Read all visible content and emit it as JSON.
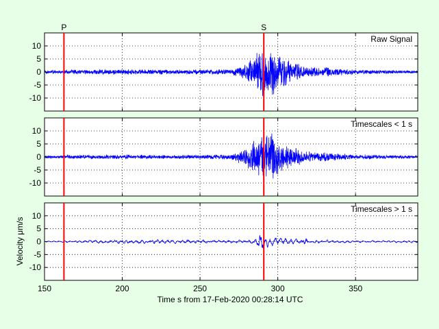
{
  "figure": {
    "background": "#e6ffe6",
    "plot_background": "#ffffff",
    "signal_color": "#0000ff",
    "phase_color": "#ff0000"
  },
  "chart_data": {
    "type": "line",
    "xlabel": "Time s from 17-Feb-2020 00:28:14 UTC",
    "ylabel": "Velocity μm/s",
    "xlim": [
      150,
      390
    ],
    "ylim": [
      -15,
      15
    ],
    "x_ticks": [
      150,
      200,
      250,
      300,
      350
    ],
    "y_ticks": [
      10,
      5,
      0,
      -5,
      -10
    ],
    "grid": true,
    "grid_style": "dotted",
    "phases": [
      {
        "label": "P",
        "time": 162.5
      },
      {
        "label": "S",
        "time": 291
      }
    ],
    "panels": [
      {
        "label": "Raw Signal",
        "noise_amp": 0.9,
        "envelope": [
          [
            150,
            0.8
          ],
          [
            162,
            0.8
          ],
          [
            165,
            1.0
          ],
          [
            200,
            1.1
          ],
          [
            230,
            1.0
          ],
          [
            270,
            1.1
          ],
          [
            280,
            3.5
          ],
          [
            287,
            8.5
          ],
          [
            290,
            10
          ],
          [
            293,
            9.5
          ],
          [
            296,
            11
          ],
          [
            300,
            7.5
          ],
          [
            310,
            4
          ],
          [
            320,
            2.5
          ],
          [
            335,
            1.8
          ],
          [
            350,
            1.0
          ],
          [
            390,
            0.6
          ]
        ]
      },
      {
        "label": "Timescales < 1 s",
        "noise_amp": 0.7,
        "envelope": [
          [
            150,
            0.6
          ],
          [
            162,
            0.6
          ],
          [
            165,
            0.9
          ],
          [
            200,
            0.9
          ],
          [
            230,
            0.8
          ],
          [
            270,
            1.0
          ],
          [
            280,
            4
          ],
          [
            287,
            9
          ],
          [
            290,
            12
          ],
          [
            293,
            10
          ],
          [
            296,
            11
          ],
          [
            300,
            8
          ],
          [
            310,
            4
          ],
          [
            320,
            2.5
          ],
          [
            335,
            1.8
          ],
          [
            350,
            1.0
          ],
          [
            390,
            0.6
          ]
        ]
      },
      {
        "label": "Timescales > 1 s",
        "noise_amp": 0.5,
        "envelope": [
          [
            150,
            0.2
          ],
          [
            162,
            0.25
          ],
          [
            200,
            0.5
          ],
          [
            230,
            0.5
          ],
          [
            260,
            0.4
          ],
          [
            285,
            0.5
          ],
          [
            289,
            2.5
          ],
          [
            291,
            2.8
          ],
          [
            293,
            1.5
          ],
          [
            296,
            0.9
          ],
          [
            300,
            1.2
          ],
          [
            305,
            1.0
          ],
          [
            310,
            0.6
          ],
          [
            315,
            0.8
          ],
          [
            318,
            1.2
          ],
          [
            320,
            0.4
          ],
          [
            390,
            0.25
          ]
        ]
      }
    ]
  }
}
